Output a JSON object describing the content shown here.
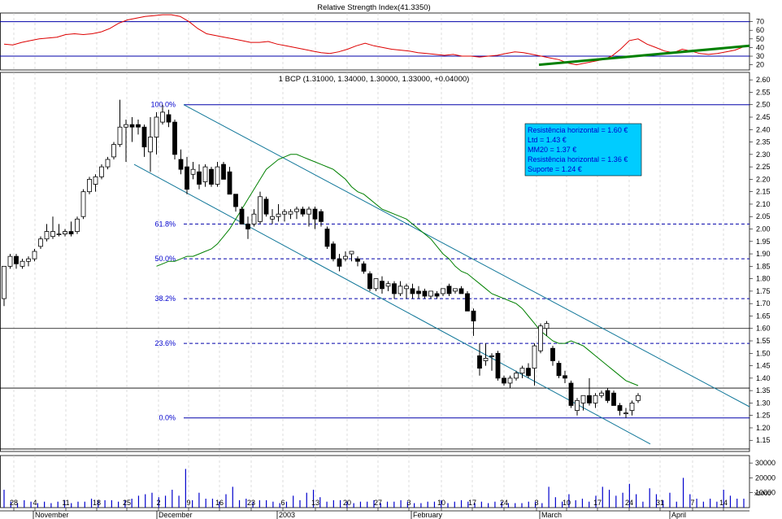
{
  "chart_data": [
    {
      "type": "line",
      "panel": "rsi",
      "title": "Relative Strength Index(41.3350)",
      "y_ticks": [
        "70",
        "60",
        "50",
        "40",
        "30",
        "20"
      ],
      "ylim": [
        14,
        80
      ],
      "reference_lines": [
        70,
        30
      ],
      "series": [
        {
          "values": [
            44,
            43,
            46,
            48,
            50,
            51,
            52,
            55,
            56,
            55,
            56,
            58,
            62,
            68,
            72,
            74,
            76,
            77,
            78,
            78,
            76,
            70,
            62,
            56,
            54,
            52,
            50,
            48,
            46,
            46,
            47,
            44,
            42,
            40,
            38,
            36,
            34,
            33,
            35,
            38,
            42,
            45,
            42,
            40,
            38,
            37,
            36,
            34,
            33,
            32,
            31,
            32,
            30,
            30,
            29,
            30,
            31,
            33,
            35,
            34,
            32,
            30,
            28,
            26,
            22,
            20,
            22,
            24,
            26,
            30,
            38,
            48,
            50,
            44,
            40,
            36,
            34,
            38,
            36,
            33,
            32,
            33,
            35,
            37,
            41
          ]
        }
      ],
      "trendline": {
        "from": [
          63,
          20
        ],
        "to": [
          90,
          42
        ],
        "color": "#008000"
      }
    },
    {
      "type": "candlestick",
      "panel": "price",
      "title": "1 BCP (1.31000, 1.34000, 1.30000, 1.33000, +0.04000)",
      "y_ticks": [
        "2.60",
        "2.55",
        "2.50",
        "2.45",
        "2.40",
        "2.35",
        "2.30",
        "2.25",
        "2.20",
        "2.15",
        "2.10",
        "2.05",
        "2.00",
        "1.95",
        "1.90",
        "1.85",
        "1.80",
        "1.75",
        "1.70",
        "1.65",
        "1.60",
        "1.55",
        "1.50",
        "1.45",
        "1.40",
        "1.35",
        "1.30",
        "1.25",
        "1.20",
        "1.15"
      ],
      "ylim": [
        1.105,
        2.63
      ],
      "fibonacci": [
        {
          "label": "100.0%",
          "value": 2.5
        },
        {
          "label": "61.8%",
          "value": 2.02
        },
        {
          "label": "50.0%",
          "value": 1.88
        },
        {
          "label": "38.2%",
          "value": 1.72
        },
        {
          "label": "23.6%",
          "value": 1.54
        },
        {
          "label": "0.0%",
          "value": 1.24
        }
      ],
      "horizontal_lines": [
        1.6,
        1.36,
        1.115
      ],
      "info_box": [
        "Resistência horizontal = 1.60 €",
        "Ltd = 1.43 €",
        "MM20 = 1.37 €",
        "Resistência horizontal = 1.36 €",
        "Suporte = 1.24 €"
      ],
      "candles": [
        {
          "o": 1.72,
          "h": 1.85,
          "l": 1.69,
          "c": 1.85
        },
        {
          "o": 1.85,
          "h": 1.9,
          "l": 1.84,
          "c": 1.89
        },
        {
          "o": 1.89,
          "h": 1.9,
          "l": 1.84,
          "c": 1.86
        },
        {
          "o": 1.85,
          "h": 1.88,
          "l": 1.84,
          "c": 1.87
        },
        {
          "o": 1.87,
          "h": 1.89,
          "l": 1.85,
          "c": 1.88
        },
        {
          "o": 1.88,
          "h": 1.92,
          "l": 1.87,
          "c": 1.91
        },
        {
          "o": 1.93,
          "h": 1.97,
          "l": 1.92,
          "c": 1.96
        },
        {
          "o": 1.96,
          "h": 2.02,
          "l": 1.95,
          "c": 1.99
        },
        {
          "o": 1.97,
          "h": 2.05,
          "l": 1.96,
          "c": 1.99
        },
        {
          "o": 1.98,
          "h": 2.02,
          "l": 1.97,
          "c": 1.98
        },
        {
          "o": 1.98,
          "h": 2.0,
          "l": 1.97,
          "c": 1.99
        },
        {
          "o": 1.99,
          "h": 2.03,
          "l": 1.97,
          "c": 1.98
        },
        {
          "o": 1.99,
          "h": 2.05,
          "l": 1.98,
          "c": 2.04
        },
        {
          "o": 2.05,
          "h": 2.16,
          "l": 2.04,
          "c": 2.15
        },
        {
          "o": 2.15,
          "h": 2.21,
          "l": 2.14,
          "c": 2.2
        },
        {
          "o": 2.18,
          "h": 2.22,
          "l": 2.15,
          "c": 2.21
        },
        {
          "o": 2.21,
          "h": 2.26,
          "l": 2.2,
          "c": 2.25
        },
        {
          "o": 2.25,
          "h": 2.29,
          "l": 2.24,
          "c": 2.28
        },
        {
          "o": 2.29,
          "h": 2.35,
          "l": 2.28,
          "c": 2.34
        },
        {
          "o": 2.34,
          "h": 2.52,
          "l": 2.33,
          "c": 2.41
        },
        {
          "o": 2.41,
          "h": 2.44,
          "l": 2.27,
          "c": 2.42
        },
        {
          "o": 2.42,
          "h": 2.45,
          "l": 2.35,
          "c": 2.41
        },
        {
          "o": 2.42,
          "h": 2.44,
          "l": 2.38,
          "c": 2.41
        },
        {
          "o": 2.41,
          "h": 2.42,
          "l": 2.29,
          "c": 2.33
        },
        {
          "o": 2.31,
          "h": 2.45,
          "l": 2.23,
          "c": 2.37
        },
        {
          "o": 2.37,
          "h": 2.47,
          "l": 2.3,
          "c": 2.45
        },
        {
          "o": 2.43,
          "h": 2.5,
          "l": 2.42,
          "c": 2.47
        },
        {
          "o": 2.46,
          "h": 2.48,
          "l": 2.41,
          "c": 2.43
        },
        {
          "o": 2.43,
          "h": 2.44,
          "l": 2.28,
          "c": 2.3
        },
        {
          "o": 2.28,
          "h": 2.32,
          "l": 2.22,
          "c": 2.24
        },
        {
          "o": 2.25,
          "h": 2.29,
          "l": 2.14,
          "c": 2.16
        },
        {
          "o": 2.22,
          "h": 2.27,
          "l": 2.2,
          "c": 2.24
        },
        {
          "o": 2.23,
          "h": 2.26,
          "l": 2.16,
          "c": 2.18
        },
        {
          "o": 2.19,
          "h": 2.26,
          "l": 2.17,
          "c": 2.25
        },
        {
          "o": 2.24,
          "h": 2.25,
          "l": 2.17,
          "c": 2.18
        },
        {
          "o": 2.18,
          "h": 2.27,
          "l": 2.17,
          "c": 2.25
        },
        {
          "o": 2.26,
          "h": 2.27,
          "l": 2.2,
          "c": 2.2
        },
        {
          "o": 2.23,
          "h": 2.25,
          "l": 2.14,
          "c": 2.14
        },
        {
          "o": 2.14,
          "h": 2.14,
          "l": 2.07,
          "c": 2.09
        },
        {
          "o": 2.08,
          "h": 2.09,
          "l": 2.02,
          "c": 2.02
        },
        {
          "o": 2.02,
          "h": 2.05,
          "l": 1.96,
          "c": 2.0
        },
        {
          "o": 2.02,
          "h": 2.08,
          "l": 2.01,
          "c": 2.06
        },
        {
          "o": 2.03,
          "h": 2.15,
          "l": 2.02,
          "c": 2.13
        },
        {
          "o": 2.12,
          "h": 2.13,
          "l": 2.05,
          "c": 2.06
        },
        {
          "o": 2.04,
          "h": 2.08,
          "l": 2.02,
          "c": 2.05
        },
        {
          "o": 2.05,
          "h": 2.1,
          "l": 2.03,
          "c": 2.06
        },
        {
          "o": 2.06,
          "h": 2.08,
          "l": 2.03,
          "c": 2.07
        },
        {
          "o": 2.06,
          "h": 2.08,
          "l": 2.04,
          "c": 2.07
        },
        {
          "o": 2.07,
          "h": 2.09,
          "l": 2.04,
          "c": 2.08
        },
        {
          "o": 2.08,
          "h": 2.09,
          "l": 2.05,
          "c": 2.06
        },
        {
          "o": 2.06,
          "h": 2.09,
          "l": 2.01,
          "c": 2.08
        },
        {
          "o": 2.08,
          "h": 2.09,
          "l": 2.0,
          "c": 2.04
        },
        {
          "o": 2.07,
          "h": 2.08,
          "l": 2.01,
          "c": 2.03
        },
        {
          "o": 2.0,
          "h": 2.01,
          "l": 1.92,
          "c": 1.93
        },
        {
          "o": 1.94,
          "h": 1.95,
          "l": 1.87,
          "c": 1.88
        },
        {
          "o": 1.88,
          "h": 1.9,
          "l": 1.83,
          "c": 1.85
        },
        {
          "o": 1.88,
          "h": 1.91,
          "l": 1.87,
          "c": 1.89
        },
        {
          "o": 1.9,
          "h": 1.91,
          "l": 1.87,
          "c": 1.91
        },
        {
          "o": 1.88,
          "h": 1.89,
          "l": 1.85,
          "c": 1.87
        },
        {
          "o": 1.86,
          "h": 1.87,
          "l": 1.82,
          "c": 1.83
        },
        {
          "o": 1.82,
          "h": 1.83,
          "l": 1.75,
          "c": 1.76
        },
        {
          "o": 1.76,
          "h": 1.8,
          "l": 1.75,
          "c": 1.8
        },
        {
          "o": 1.79,
          "h": 1.81,
          "l": 1.74,
          "c": 1.76
        },
        {
          "o": 1.77,
          "h": 1.79,
          "l": 1.75,
          "c": 1.78
        },
        {
          "o": 1.78,
          "h": 1.79,
          "l": 1.72,
          "c": 1.74
        },
        {
          "o": 1.74,
          "h": 1.79,
          "l": 1.73,
          "c": 1.77
        },
        {
          "o": 1.76,
          "h": 1.78,
          "l": 1.72,
          "c": 1.77
        },
        {
          "o": 1.76,
          "h": 1.78,
          "l": 1.72,
          "c": 1.74
        },
        {
          "o": 1.75,
          "h": 1.77,
          "l": 1.72,
          "c": 1.74
        },
        {
          "o": 1.75,
          "h": 1.76,
          "l": 1.72,
          "c": 1.73
        },
        {
          "o": 1.73,
          "h": 1.75,
          "l": 1.72,
          "c": 1.75
        },
        {
          "o": 1.74,
          "h": 1.75,
          "l": 1.72,
          "c": 1.73
        },
        {
          "o": 1.74,
          "h": 1.76,
          "l": 1.73,
          "c": 1.76
        },
        {
          "o": 1.77,
          "h": 1.78,
          "l": 1.73,
          "c": 1.74
        },
        {
          "o": 1.75,
          "h": 1.76,
          "l": 1.74,
          "c": 1.76
        },
        {
          "o": 1.76,
          "h": 1.77,
          "l": 1.74,
          "c": 1.74
        },
        {
          "o": 1.74,
          "h": 1.75,
          "l": 1.67,
          "c": 1.67
        },
        {
          "o": 1.67,
          "h": 1.68,
          "l": 1.57,
          "c": 1.63
        },
        {
          "o": 1.49,
          "h": 1.54,
          "l": 1.41,
          "c": 1.44
        },
        {
          "o": 1.47,
          "h": 1.54,
          "l": 1.45,
          "c": 1.48
        },
        {
          "o": 1.49,
          "h": 1.5,
          "l": 1.43,
          "c": 1.49
        },
        {
          "o": 1.5,
          "h": 1.51,
          "l": 1.39,
          "c": 1.4
        },
        {
          "o": 1.4,
          "h": 1.41,
          "l": 1.37,
          "c": 1.38
        },
        {
          "o": 1.38,
          "h": 1.41,
          "l": 1.36,
          "c": 1.4
        },
        {
          "o": 1.4,
          "h": 1.43,
          "l": 1.39,
          "c": 1.42
        },
        {
          "o": 1.42,
          "h": 1.45,
          "l": 1.4,
          "c": 1.44
        },
        {
          "o": 1.44,
          "h": 1.46,
          "l": 1.4,
          "c": 1.41
        },
        {
          "o": 1.44,
          "h": 1.54,
          "l": 1.37,
          "c": 1.53
        },
        {
          "o": 1.51,
          "h": 1.62,
          "l": 1.5,
          "c": 1.61
        },
        {
          "o": 1.6,
          "h": 1.63,
          "l": 1.57,
          "c": 1.62
        },
        {
          "o": 1.52,
          "h": 1.53,
          "l": 1.45,
          "c": 1.47
        },
        {
          "o": 1.46,
          "h": 1.47,
          "l": 1.4,
          "c": 1.41
        },
        {
          "o": 1.41,
          "h": 1.43,
          "l": 1.38,
          "c": 1.4
        },
        {
          "o": 1.38,
          "h": 1.39,
          "l": 1.28,
          "c": 1.29
        },
        {
          "o": 1.27,
          "h": 1.32,
          "l": 1.25,
          "c": 1.31
        },
        {
          "o": 1.3,
          "h": 1.33,
          "l": 1.27,
          "c": 1.33
        },
        {
          "o": 1.33,
          "h": 1.4,
          "l": 1.29,
          "c": 1.3
        },
        {
          "o": 1.3,
          "h": 1.34,
          "l": 1.28,
          "c": 1.33
        },
        {
          "o": 1.33,
          "h": 1.35,
          "l": 1.32,
          "c": 1.34
        },
        {
          "o": 1.35,
          "h": 1.36,
          "l": 1.3,
          "c": 1.31
        },
        {
          "o": 1.34,
          "h": 1.35,
          "l": 1.29,
          "c": 1.29
        },
        {
          "o": 1.29,
          "h": 1.3,
          "l": 1.25,
          "c": 1.27
        },
        {
          "o": 1.26,
          "h": 1.28,
          "l": 1.24,
          "c": 1.26
        },
        {
          "o": 1.27,
          "h": 1.31,
          "l": 1.25,
          "c": 1.3
        },
        {
          "o": 1.31,
          "h": 1.34,
          "l": 1.3,
          "c": 1.33
        }
      ],
      "ma20": [
        1.85,
        1.86,
        1.87,
        1.87,
        1.88,
        1.89,
        1.89,
        1.9,
        1.91,
        1.92,
        1.94,
        1.97,
        2.0,
        2.04,
        2.08,
        2.12,
        2.16,
        2.2,
        2.24,
        2.26,
        2.28,
        2.29,
        2.3,
        2.3,
        2.29,
        2.28,
        2.27,
        2.26,
        2.25,
        2.24,
        2.22,
        2.2,
        2.17,
        2.15,
        2.14,
        2.12,
        2.1,
        2.08,
        2.07,
        2.06,
        2.05,
        2.04,
        2.02,
        2.0,
        1.98,
        1.96,
        1.93,
        1.9,
        1.88,
        1.85,
        1.83,
        1.82,
        1.8,
        1.78,
        1.76,
        1.74,
        1.73,
        1.72,
        1.71,
        1.7,
        1.68,
        1.65,
        1.62,
        1.59,
        1.57,
        1.55,
        1.54,
        1.54,
        1.55,
        1.54,
        1.53,
        1.51,
        1.49,
        1.47,
        1.45,
        1.43,
        1.41,
        1.39,
        1.38,
        1.37
      ]
    },
    {
      "type": "bar",
      "panel": "volume",
      "y_ticks": [
        "30000",
        "20000",
        "10000"
      ],
      "unit_label": "x1000",
      "ylim": [
        0,
        35000
      ],
      "values": [
        12000,
        4000,
        3000,
        5000,
        4000,
        3000,
        4000,
        3000,
        4000,
        5000,
        3000,
        4000,
        4000,
        6000,
        5000,
        5000,
        5000,
        4000,
        5000,
        6000,
        8000,
        9000,
        10000,
        7000,
        8000,
        12000,
        8000,
        26000,
        5000,
        10000,
        6000,
        6000,
        4000,
        9000,
        14000,
        5000,
        6000,
        4000,
        5000,
        5000,
        4000,
        3000,
        4000,
        8000,
        5000,
        10000,
        12000,
        7000,
        4000,
        5000,
        5000,
        4000,
        3000,
        4000,
        4000,
        5000,
        3000,
        4000,
        4000,
        5000,
        4000,
        3000,
        3000,
        4000,
        4000,
        5000,
        3000,
        4000,
        5000,
        4000,
        3000,
        4000,
        3000,
        4000,
        4000,
        3000,
        3000,
        3000,
        4000,
        4000,
        3000,
        14000,
        7000,
        4000,
        9000,
        5000,
        6000,
        4000,
        8000,
        14000,
        12000,
        8000,
        10000,
        16000,
        9000,
        4000,
        13000,
        9000,
        5000,
        10000,
        4000,
        20000,
        9000,
        6000,
        4000,
        6000,
        4000,
        12000,
        8000,
        6000,
        6000
      ]
    }
  ],
  "x_axis": {
    "ticks": [
      "28",
      "4",
      "11",
      "18",
      "25",
      "2",
      "9",
      "16",
      "23",
      "6",
      "13",
      "20",
      "27",
      "3",
      "10",
      "17",
      "24",
      "3",
      "10",
      "17",
      "24",
      "31",
      "7",
      "14"
    ],
    "months": [
      "November",
      "December",
      "2003",
      "February",
      "March",
      "April"
    ]
  }
}
